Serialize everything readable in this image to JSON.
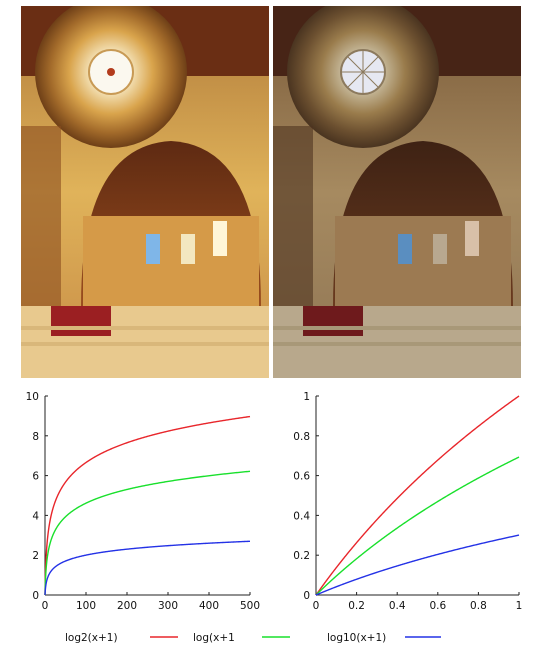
{
  "images": {
    "left": "Stanford Memorial Church interior, HDR image tone mapped with a bright warm rendering",
    "right": "Same interior tone mapped with a darker, more muted rendering"
  },
  "colors": {
    "log2": "#e8262b",
    "ln": "#19e02c",
    "log10": "#2432e6"
  },
  "chart_data": [
    {
      "type": "line",
      "x_range": [
        0,
        500
      ],
      "ylim": [
        0,
        10
      ],
      "xticks": [
        0,
        100,
        200,
        300,
        400,
        500
      ],
      "yticks": [
        0,
        2,
        4,
        6,
        8,
        10
      ],
      "series": [
        {
          "name": "log2(x+1)",
          "color": "#e8262b",
          "fn": "log2",
          "x": [
            0,
            1,
            5,
            10,
            25,
            50,
            100,
            200,
            300,
            400,
            500
          ],
          "y": [
            0,
            1.0,
            2.58,
            3.46,
            4.7,
            5.67,
            6.66,
            7.65,
            8.24,
            8.65,
            8.97
          ]
        },
        {
          "name": "log(x+1)",
          "color": "#19e02c",
          "fn": "ln",
          "x": [
            0,
            1,
            5,
            10,
            25,
            50,
            100,
            200,
            300,
            400,
            500
          ],
          "y": [
            0,
            0.69,
            1.79,
            2.4,
            3.26,
            3.93,
            4.62,
            5.3,
            5.71,
            5.99,
            6.22
          ]
        },
        {
          "name": "log10(x+1)",
          "color": "#2432e6",
          "fn": "log10",
          "x": [
            0,
            1,
            5,
            10,
            25,
            50,
            100,
            200,
            300,
            400,
            500
          ],
          "y": [
            0,
            0.3,
            0.78,
            1.04,
            1.41,
            1.71,
            2.0,
            2.3,
            2.48,
            2.6,
            2.7
          ]
        }
      ]
    },
    {
      "type": "line",
      "x_range": [
        0,
        1
      ],
      "ylim": [
        0,
        1
      ],
      "xticks": [
        0,
        0.2,
        0.4,
        0.6,
        0.8,
        1
      ],
      "yticks": [
        0,
        0.2,
        0.4,
        0.6,
        0.8,
        1
      ],
      "series": [
        {
          "name": "log2(x+1)",
          "color": "#e8262b",
          "fn": "log2",
          "x": [
            0,
            0.2,
            0.4,
            0.6,
            0.8,
            1
          ],
          "y": [
            0,
            0.263,
            0.485,
            0.678,
            0.848,
            1.0
          ]
        },
        {
          "name": "log(x+1)",
          "color": "#19e02c",
          "fn": "ln",
          "x": [
            0,
            0.2,
            0.4,
            0.6,
            0.8,
            1
          ],
          "y": [
            0,
            0.182,
            0.336,
            0.47,
            0.588,
            0.693
          ]
        },
        {
          "name": "log10(x+1)",
          "color": "#2432e6",
          "fn": "log10",
          "x": [
            0,
            0.2,
            0.4,
            0.6,
            0.8,
            1
          ],
          "y": [
            0,
            0.079,
            0.146,
            0.204,
            0.255,
            0.301
          ]
        }
      ]
    }
  ],
  "legend": [
    {
      "label": "log2(x+1)",
      "color": "#e8262b"
    },
    {
      "label": "log(x+1",
      "color": "#19e02c"
    },
    {
      "label": "log10(x+1)",
      "color": "#2432e6"
    }
  ]
}
